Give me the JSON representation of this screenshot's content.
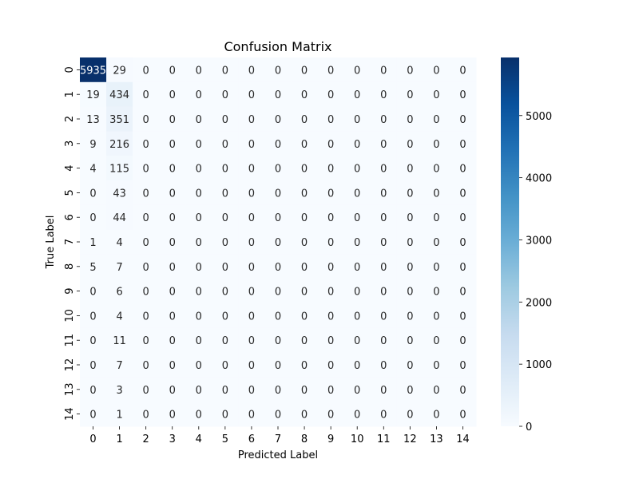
{
  "chart_data": {
    "type": "heatmap",
    "title": "Confusion Matrix",
    "xlabel": "Predicted Label",
    "ylabel": "True Label",
    "x_categories": [
      "0",
      "1",
      "2",
      "3",
      "4",
      "5",
      "6",
      "7",
      "8",
      "9",
      "10",
      "11",
      "12",
      "13",
      "14"
    ],
    "y_categories": [
      "0",
      "1",
      "2",
      "3",
      "4",
      "5",
      "6",
      "7",
      "8",
      "9",
      "10",
      "11",
      "12",
      "13",
      "14"
    ],
    "values": [
      [
        5935,
        29,
        0,
        0,
        0,
        0,
        0,
        0,
        0,
        0,
        0,
        0,
        0,
        0,
        0
      ],
      [
        19,
        434,
        0,
        0,
        0,
        0,
        0,
        0,
        0,
        0,
        0,
        0,
        0,
        0,
        0
      ],
      [
        13,
        351,
        0,
        0,
        0,
        0,
        0,
        0,
        0,
        0,
        0,
        0,
        0,
        0,
        0
      ],
      [
        9,
        216,
        0,
        0,
        0,
        0,
        0,
        0,
        0,
        0,
        0,
        0,
        0,
        0,
        0
      ],
      [
        4,
        115,
        0,
        0,
        0,
        0,
        0,
        0,
        0,
        0,
        0,
        0,
        0,
        0,
        0
      ],
      [
        0,
        43,
        0,
        0,
        0,
        0,
        0,
        0,
        0,
        0,
        0,
        0,
        0,
        0,
        0
      ],
      [
        0,
        44,
        0,
        0,
        0,
        0,
        0,
        0,
        0,
        0,
        0,
        0,
        0,
        0,
        0
      ],
      [
        1,
        4,
        0,
        0,
        0,
        0,
        0,
        0,
        0,
        0,
        0,
        0,
        0,
        0,
        0
      ],
      [
        5,
        7,
        0,
        0,
        0,
        0,
        0,
        0,
        0,
        0,
        0,
        0,
        0,
        0,
        0
      ],
      [
        0,
        6,
        0,
        0,
        0,
        0,
        0,
        0,
        0,
        0,
        0,
        0,
        0,
        0,
        0
      ],
      [
        0,
        4,
        0,
        0,
        0,
        0,
        0,
        0,
        0,
        0,
        0,
        0,
        0,
        0,
        0
      ],
      [
        0,
        11,
        0,
        0,
        0,
        0,
        0,
        0,
        0,
        0,
        0,
        0,
        0,
        0,
        0
      ],
      [
        0,
        7,
        0,
        0,
        0,
        0,
        0,
        0,
        0,
        0,
        0,
        0,
        0,
        0,
        0
      ],
      [
        0,
        3,
        0,
        0,
        0,
        0,
        0,
        0,
        0,
        0,
        0,
        0,
        0,
        0,
        0
      ],
      [
        0,
        1,
        0,
        0,
        0,
        0,
        0,
        0,
        0,
        0,
        0,
        0,
        0,
        0,
        0
      ]
    ],
    "colorbar": {
      "colormap": "Blues",
      "range": [
        0,
        5935
      ],
      "ticks": [
        0,
        1000,
        2000,
        3000,
        4000,
        5000
      ]
    },
    "annotations": "cell values shown"
  }
}
